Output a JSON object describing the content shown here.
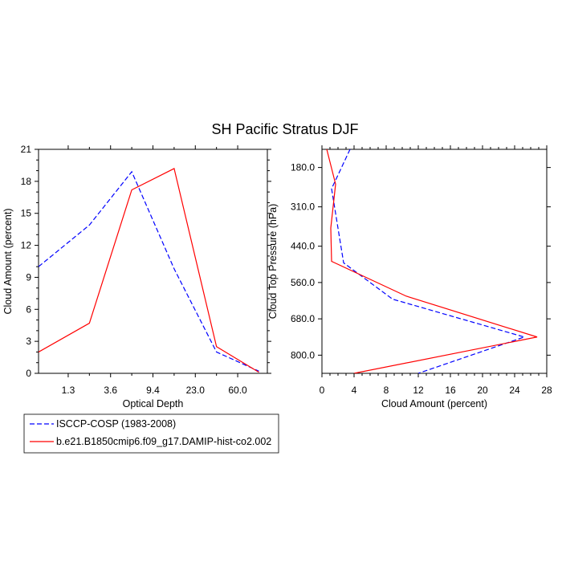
{
  "title": "SH Pacific Stratus DJF",
  "colors": {
    "isccp": "#0000ff",
    "model": "#ff0000",
    "axis": "#000000"
  },
  "legend": {
    "entries": [
      {
        "label": "ISCCP-COSP (1983-2008)",
        "color": "#0000ff",
        "dash": "dashed"
      },
      {
        "label": "b.e21.B1850cmip6.f09_g17.DAMIP-hist-co2.002",
        "color": "#ff0000",
        "dash": "solid"
      }
    ]
  },
  "chart_data": [
    {
      "type": "line",
      "xlabel": "Optical Depth",
      "ylabel": "Cloud Amount (percent)",
      "x_tick_labels": [
        "1.3",
        "3.6",
        "9.4",
        "23.0",
        "60.0"
      ],
      "x_tick_positions": [
        1,
        2,
        3,
        4,
        5
      ],
      "xlim": [
        0.3,
        5.7
      ],
      "ylim": [
        0,
        21
      ],
      "y_ticks": [
        0,
        3,
        6,
        9,
        12,
        15,
        18,
        21
      ],
      "series": [
        {
          "name": "ISCCP-COSP (1983-2008)",
          "x": [
            0.3,
            1.5,
            2.5,
            3.5,
            4.5,
            5.5
          ],
          "values": [
            10.0,
            13.9,
            18.9,
            9.8,
            2.0,
            0.2
          ]
        },
        {
          "name": "b.e21.B1850cmip6.f09_g17.DAMIP-hist-co2.002",
          "x": [
            0.3,
            1.5,
            2.5,
            3.5,
            4.5,
            5.5
          ],
          "values": [
            2.0,
            4.7,
            17.2,
            19.2,
            2.5,
            0.1
          ]
        }
      ]
    },
    {
      "type": "line",
      "xlabel": "Cloud Amount (percent)",
      "ylabel": "Cloud Top Pressure (hPa)",
      "xlim": [
        0,
        28
      ],
      "x_ticks": [
        0,
        4,
        8,
        12,
        16,
        20,
        24,
        28
      ],
      "ylim": [
        120,
        860
      ],
      "y_ticks": [
        180.0,
        310.0,
        440.0,
        560.0,
        680.0,
        800.0
      ],
      "y_tick_labels": [
        "180.0",
        "310.0",
        "440.0",
        "560.0",
        "680.0",
        "800.0"
      ],
      "y_inverted": true,
      "series": [
        {
          "name": "ISCCP-COSP (1983-2008)",
          "pressure": [
            120,
            250,
            495,
            615,
            740,
            860
          ],
          "values": [
            3.5,
            1.2,
            2.7,
            8.8,
            25.2,
            12.0
          ]
        },
        {
          "name": "b.e21.B1850cmip6.f09_g17.DAMIP-hist-co2.002",
          "pressure": [
            120,
            235,
            380,
            490,
            605,
            740,
            860
          ],
          "values": [
            0.6,
            1.7,
            1.1,
            1.2,
            10.5,
            26.8,
            4.0
          ]
        }
      ]
    }
  ]
}
